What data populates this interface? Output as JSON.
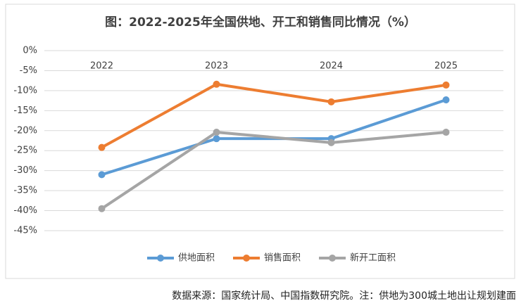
{
  "chart_data": {
    "type": "line",
    "title": "图：2022-2025年全国供地、开工和销售同比情况（%）",
    "categories": [
      "2022",
      "2023",
      "2024",
      "2025"
    ],
    "series": [
      {
        "name": "供地面积",
        "color": "#5b9bd5",
        "values": [
          -31,
          -22,
          -22,
          -12.3
        ]
      },
      {
        "name": "销售面积",
        "color": "#ed7d31",
        "values": [
          -24.2,
          -8.4,
          -12.8,
          -8.6
        ]
      },
      {
        "name": "新开工面积",
        "color": "#a5a5a5",
        "values": [
          -39.5,
          -20.4,
          -23,
          -20.4
        ]
      }
    ],
    "ylim": [
      -45,
      0
    ],
    "yticks": [
      {
        "value": 0,
        "label": "0%"
      },
      {
        "value": -5,
        "label": "-5%"
      },
      {
        "value": -10,
        "label": "-10%"
      },
      {
        "value": -15,
        "label": "-15%"
      },
      {
        "value": -20,
        "label": "-20%"
      },
      {
        "value": -25,
        "label": "-25%"
      },
      {
        "value": -30,
        "label": "-30%"
      },
      {
        "value": -35,
        "label": "-35%"
      },
      {
        "value": -40,
        "label": "-40%"
      },
      {
        "value": -45,
        "label": "-45%"
      }
    ],
    "grid": true,
    "legend": "bottom",
    "source": "数据来源：国家统计局、中国指数研究院。注：供地为300城土地出让规划建面"
  }
}
